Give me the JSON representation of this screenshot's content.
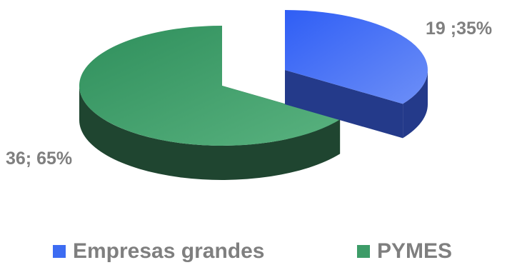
{
  "chart_data": {
    "type": "pie",
    "title": "",
    "categories": [
      "Empresas grandes",
      "PYMES"
    ],
    "values": [
      19,
      36
    ],
    "percentages": [
      "35%",
      "65%"
    ],
    "data_labels": [
      "19 ;35%",
      "36; 65%"
    ],
    "colors": [
      "#3d6cf2",
      "#3d9c68"
    ],
    "style": "3D exploded pie",
    "legend_position": "bottom"
  }
}
